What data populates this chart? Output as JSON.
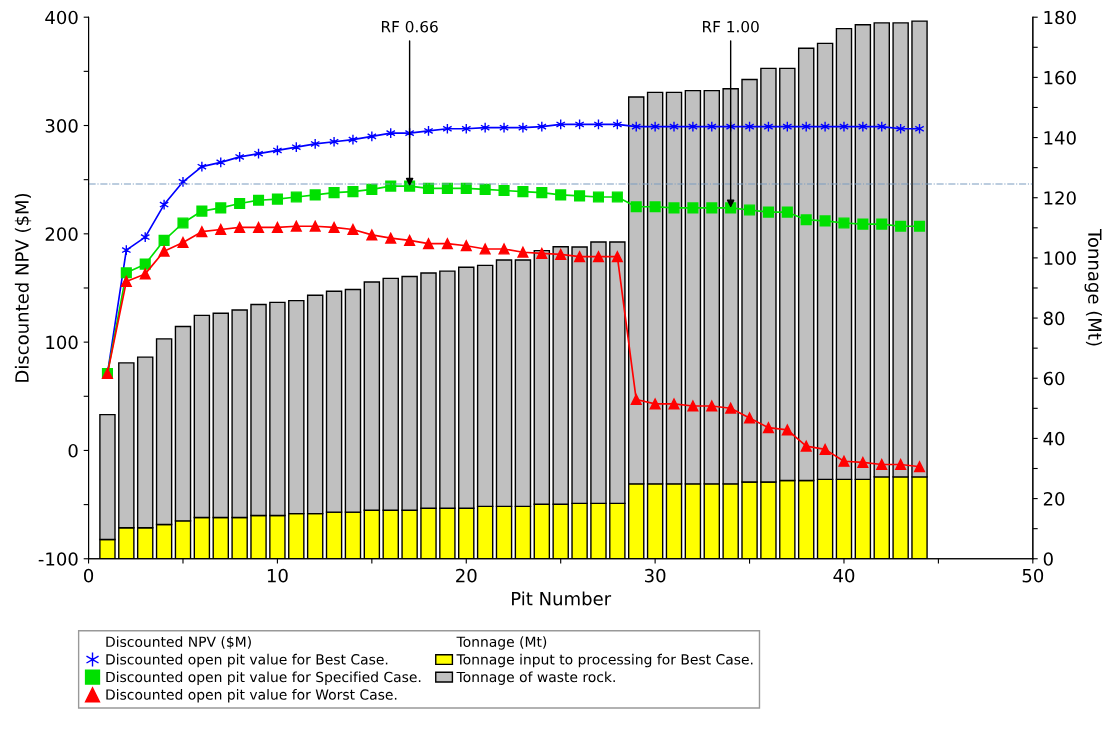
{
  "chart_data": {
    "type": "line",
    "xlabel": "Pit Number",
    "ylabel": "Discounted NPV ($M)",
    "y2label": "Tonnage (Mt)",
    "x": [
      1,
      2,
      3,
      4,
      5,
      6,
      7,
      8,
      9,
      10,
      11,
      12,
      13,
      14,
      15,
      16,
      17,
      18,
      19,
      20,
      21,
      22,
      23,
      24,
      25,
      26,
      27,
      28,
      29,
      30,
      31,
      32,
      33,
      34,
      35,
      36,
      37,
      38,
      39,
      40,
      41,
      42,
      43,
      44
    ],
    "xlim": [
      0,
      50
    ],
    "xticks": [
      0,
      {
        "value": 5,
        "label": null
      },
      10,
      {
        "value": 15,
        "label": null
      },
      20,
      {
        "value": 25,
        "label": null
      },
      30,
      {
        "value": 35,
        "label": null
      },
      40,
      {
        "value": 45,
        "label": null
      },
      50
    ],
    "ylim": [
      -100,
      400
    ],
    "yticks": [
      -100,
      {
        "value": -50,
        "label": null
      },
      0,
      {
        "value": 50,
        "label": null
      },
      100,
      {
        "value": 150,
        "label": null
      },
      200,
      {
        "value": 250,
        "label": null
      },
      300,
      {
        "value": 350,
        "label": null
      },
      400
    ],
    "y2lim": [
      0,
      180
    ],
    "y2ticks": [
      0,
      {
        "value": 10,
        "label": null
      },
      20,
      {
        "value": 30,
        "label": null
      },
      40,
      {
        "value": 50,
        "label": null
      },
      60,
      {
        "value": 70,
        "label": null
      },
      80,
      {
        "value": 90,
        "label": null
      },
      100,
      {
        "value": 110,
        "label": null
      },
      120,
      {
        "value": 130,
        "label": null
      },
      140,
      {
        "value": 150,
        "label": null
      },
      160,
      {
        "value": 170,
        "label": null
      },
      180
    ],
    "stacked": true,
    "grid": false,
    "legend": "bottom",
    "series": [
      {
        "name": "Tonnage input to processing for Best Case.",
        "type": "bar",
        "axis": "y2",
        "color": "#ffff00",
        "values": [
          6.4,
          10.3,
          10.3,
          11.4,
          12.6,
          13.7,
          13.7,
          13.7,
          14.4,
          14.4,
          15,
          15,
          15.5,
          15.5,
          16.1,
          16.1,
          16.1,
          16.8,
          16.8,
          16.8,
          17.4,
          17.4,
          17.4,
          18.1,
          18.1,
          18.4,
          18.4,
          18.4,
          24.9,
          24.9,
          24.9,
          24.9,
          24.9,
          24.9,
          25.5,
          25.5,
          26,
          26,
          26.4,
          26.4,
          26.4,
          27.2,
          27.2,
          27.2
        ]
      },
      {
        "name": "Tonnage of waste rock.",
        "type": "bar",
        "axis": "y2",
        "color": "#c0c0c0",
        "values": [
          41.5,
          54.8,
          56.7,
          61.7,
          64.6,
          67.2,
          67.9,
          69,
          70.1,
          70.8,
          70.8,
          72.6,
          73.4,
          74,
          75.9,
          77.1,
          77.7,
          78.2,
          78.8,
          80.1,
          80.1,
          81.9,
          81.9,
          84.3,
          85.6,
          85.2,
          86.9,
          86.9,
          128.6,
          130.1,
          130.1,
          130.7,
          130.7,
          131.3,
          133.8,
          137.5,
          137,
          143.7,
          144.9,
          149.8,
          151.1,
          150.9,
          150.9,
          151.5
        ]
      },
      {
        "name": "Discounted open pit value for Best Case.",
        "marker": "cross",
        "color": "#0000ff",
        "values": [
          71,
          185,
          197,
          227,
          248,
          262,
          266,
          271,
          274,
          277,
          280,
          283,
          285,
          287,
          290,
          293,
          293,
          295,
          297,
          297,
          298,
          298,
          298,
          299,
          301,
          301,
          301,
          301,
          299,
          299,
          299,
          299,
          299,
          299,
          299,
          299,
          299,
          299,
          299,
          299,
          299,
          299,
          297,
          297
        ]
      },
      {
        "name": "Discounted open pit value for Specified Case.",
        "marker": "square",
        "color": "#00e000",
        "values": [
          71,
          164,
          172,
          194,
          210,
          221,
          224,
          228,
          231,
          232,
          234,
          236,
          238,
          239,
          241,
          244,
          244,
          242,
          242,
          242,
          241,
          240,
          239,
          238,
          236,
          235,
          234,
          234,
          225,
          225,
          224,
          224,
          224,
          224,
          222,
          220,
          220,
          213,
          212,
          210,
          209,
          209,
          207,
          207
        ]
      },
      {
        "name": "Discounted open pit value for Worst Case.",
        "marker": "triangle",
        "color": "#ff0000",
        "values": [
          71,
          156,
          163,
          184,
          192,
          202,
          204,
          206,
          206,
          206,
          207,
          207,
          206,
          204,
          199,
          196,
          194,
          191,
          191,
          189,
          186,
          186,
          183,
          182,
          181,
          179,
          179,
          179,
          47,
          43,
          43,
          41,
          41,
          39,
          30,
          21,
          19,
          4,
          1,
          -10,
          -11,
          -13,
          -13,
          -15
        ]
      }
    ],
    "ref_lines": [
      {
        "axis": "y",
        "value": 246,
        "color": "#7a9cc0",
        "line_style": "dashed"
      }
    ],
    "annotations": [
      {
        "text": "RF 0.66",
        "x": 17,
        "y": 244
      },
      {
        "text": "RF 1.00",
        "x": 34,
        "y": 224
      }
    ]
  }
}
